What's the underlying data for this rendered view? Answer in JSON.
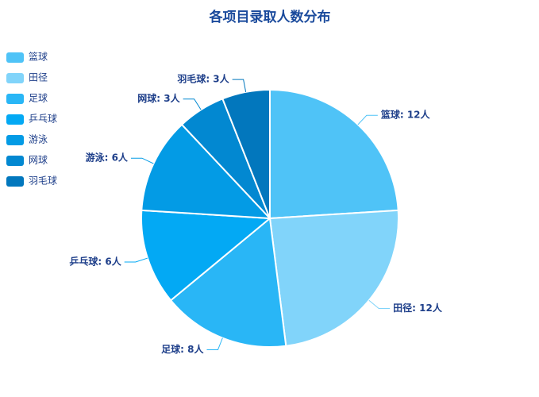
{
  "chart_data": {
    "type": "pie",
    "title": "各项目录取人数分布",
    "categories": [
      "篮球",
      "田径",
      "足球",
      "乒乓球",
      "游泳",
      "网球",
      "羽毛球"
    ],
    "values": [
      12,
      12,
      8,
      6,
      6,
      3,
      3
    ],
    "value_labels": [
      "篮球: 12人",
      "田径: 12人",
      "足球: 8人",
      "乒乓球: 6人",
      "游泳: 6人",
      "网球: 3人",
      "羽毛球: 3人"
    ],
    "colors": [
      "#4fc3f7",
      "#81d4fa",
      "#29b6f6",
      "#03a9f4",
      "#039be5",
      "#0288d1",
      "#0277bd"
    ],
    "legend": "top-left"
  }
}
